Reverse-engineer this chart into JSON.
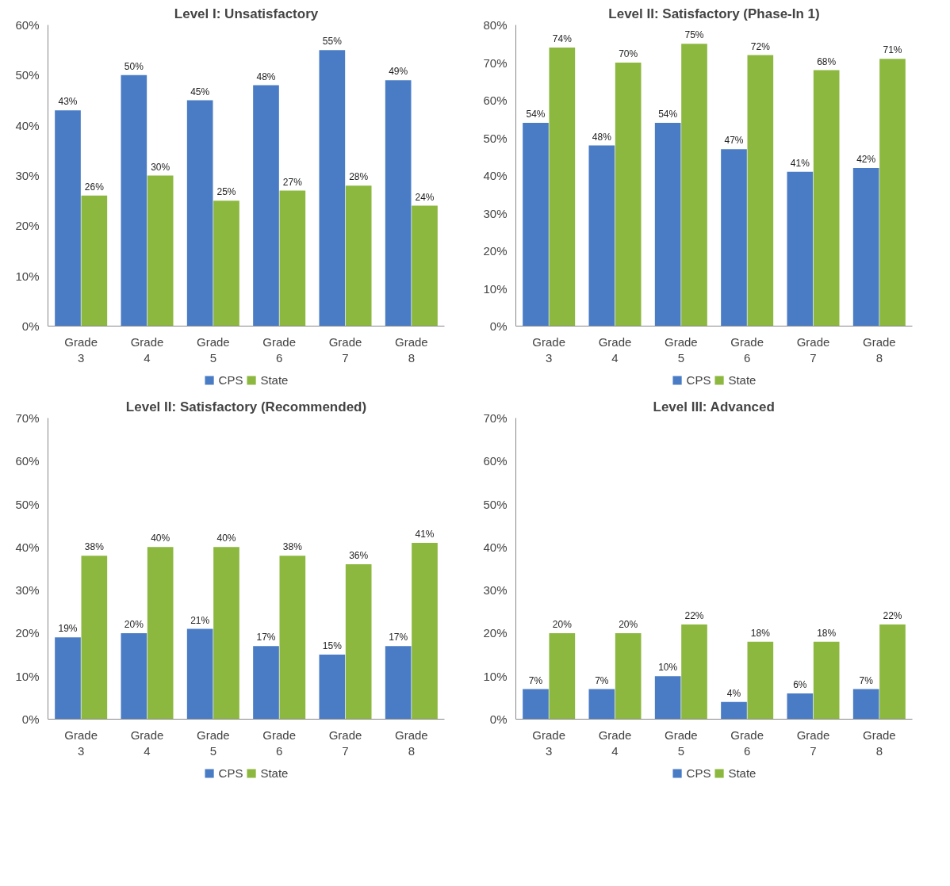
{
  "chart_data": [
    {
      "type": "bar",
      "title": "Level I: Unsatisfactory",
      "categories": [
        "Grade 3",
        "Grade 4",
        "Grade 5",
        "Grade 6",
        "Grade 7",
        "Grade 8"
      ],
      "series": [
        {
          "name": "CPS",
          "color": "#4a7cc6",
          "values": [
            43,
            50,
            45,
            48,
            55,
            49
          ],
          "value_labels": [
            "43%",
            "50%",
            "45%",
            "48%",
            "55%",
            "49%"
          ]
        },
        {
          "name": "State",
          "color": "#8cb83f",
          "values": [
            26,
            30,
            25,
            27,
            28,
            24
          ],
          "value_labels": [
            "26%",
            "30%",
            "25%",
            "27%",
            "28%",
            "24%"
          ]
        }
      ],
      "ylim": [
        0,
        60
      ],
      "yticks": [
        {
          "value": 0,
          "label": "0%"
        },
        {
          "value": 10,
          "label": "10%"
        },
        {
          "value": 20,
          "label": "20%"
        },
        {
          "value": 30,
          "label": "30%"
        },
        {
          "value": 40,
          "label": "40%"
        },
        {
          "value": 50,
          "label": "50%"
        },
        {
          "value": 60,
          "label": "60%"
        }
      ],
      "grid": false,
      "legend": "bottom"
    },
    {
      "type": "bar",
      "title": "Level II: Satisfactory (Phase-In 1)",
      "categories": [
        "Grade 3",
        "Grade 4",
        "Grade 5",
        "Grade 6",
        "Grade 7",
        "Grade 8"
      ],
      "series": [
        {
          "name": "CPS",
          "color": "#4a7cc6",
          "values": [
            54,
            48,
            54,
            47,
            41,
            42
          ],
          "value_labels": [
            "54%",
            "48%",
            "54%",
            "47%",
            "41%",
            "42%"
          ]
        },
        {
          "name": "State",
          "color": "#8cb83f",
          "values": [
            74,
            70,
            75,
            72,
            68,
            71
          ],
          "value_labels": [
            "74%",
            "70%",
            "75%",
            "72%",
            "68%",
            "71%"
          ]
        }
      ],
      "ylim": [
        0,
        80
      ],
      "yticks": [
        {
          "value": 0,
          "label": "0%"
        },
        {
          "value": 10,
          "label": "10%"
        },
        {
          "value": 20,
          "label": "20%"
        },
        {
          "value": 30,
          "label": "30%"
        },
        {
          "value": 40,
          "label": "40%"
        },
        {
          "value": 50,
          "label": "50%"
        },
        {
          "value": 60,
          "label": "60%"
        },
        {
          "value": 70,
          "label": "70%"
        },
        {
          "value": 80,
          "label": "80%"
        }
      ],
      "grid": false,
      "legend": "bottom"
    },
    {
      "type": "bar",
      "title": "Level II: Satisfactory (Recommended)",
      "categories": [
        "Grade 3",
        "Grade 4",
        "Grade 5",
        "Grade 6",
        "Grade 7",
        "Grade 8"
      ],
      "series": [
        {
          "name": "CPS",
          "color": "#4a7cc6",
          "values": [
            19,
            20,
            21,
            17,
            15,
            17
          ],
          "value_labels": [
            "19%",
            "20%",
            "21%",
            "17%",
            "15%",
            "17%"
          ]
        },
        {
          "name": "State",
          "color": "#8cb83f",
          "values": [
            38,
            40,
            40,
            38,
            36,
            41
          ],
          "value_labels": [
            "38%",
            "40%",
            "40%",
            "38%",
            "36%",
            "41%"
          ]
        }
      ],
      "ylim": [
        0,
        70
      ],
      "yticks": [
        {
          "value": 0,
          "label": "0%"
        },
        {
          "value": 10,
          "label": "10%"
        },
        {
          "value": 20,
          "label": "20%"
        },
        {
          "value": 30,
          "label": "30%"
        },
        {
          "value": 40,
          "label": "40%"
        },
        {
          "value": 50,
          "label": "50%"
        },
        {
          "value": 60,
          "label": "60%"
        },
        {
          "value": 70,
          "label": "70%"
        }
      ],
      "grid": false,
      "legend": "bottom"
    },
    {
      "type": "bar",
      "title": "Level III: Advanced",
      "categories": [
        "Grade 3",
        "Grade 4",
        "Grade 5",
        "Grade 6",
        "Grade 7",
        "Grade 8"
      ],
      "series": [
        {
          "name": "CPS",
          "color": "#4a7cc6",
          "values": [
            7,
            7,
            10,
            4,
            6,
            7
          ],
          "value_labels": [
            "7%",
            "7%",
            "10%",
            "4%",
            "6%",
            "7%"
          ]
        },
        {
          "name": "State",
          "color": "#8cb83f",
          "values": [
            20,
            20,
            22,
            18,
            18,
            22
          ],
          "value_labels": [
            "20%",
            "20%",
            "22%",
            "18%",
            "18%",
            "22%"
          ]
        }
      ],
      "ylim": [
        0,
        70
      ],
      "yticks": [
        {
          "value": 0,
          "label": "0%"
        },
        {
          "value": 10,
          "label": "10%"
        },
        {
          "value": 20,
          "label": "20%"
        },
        {
          "value": 30,
          "label": "30%"
        },
        {
          "value": 40,
          "label": "40%"
        },
        {
          "value": 50,
          "label": "50%"
        },
        {
          "value": 60,
          "label": "60%"
        },
        {
          "value": 70,
          "label": "70%"
        }
      ],
      "grid": false,
      "legend": "bottom"
    }
  ]
}
